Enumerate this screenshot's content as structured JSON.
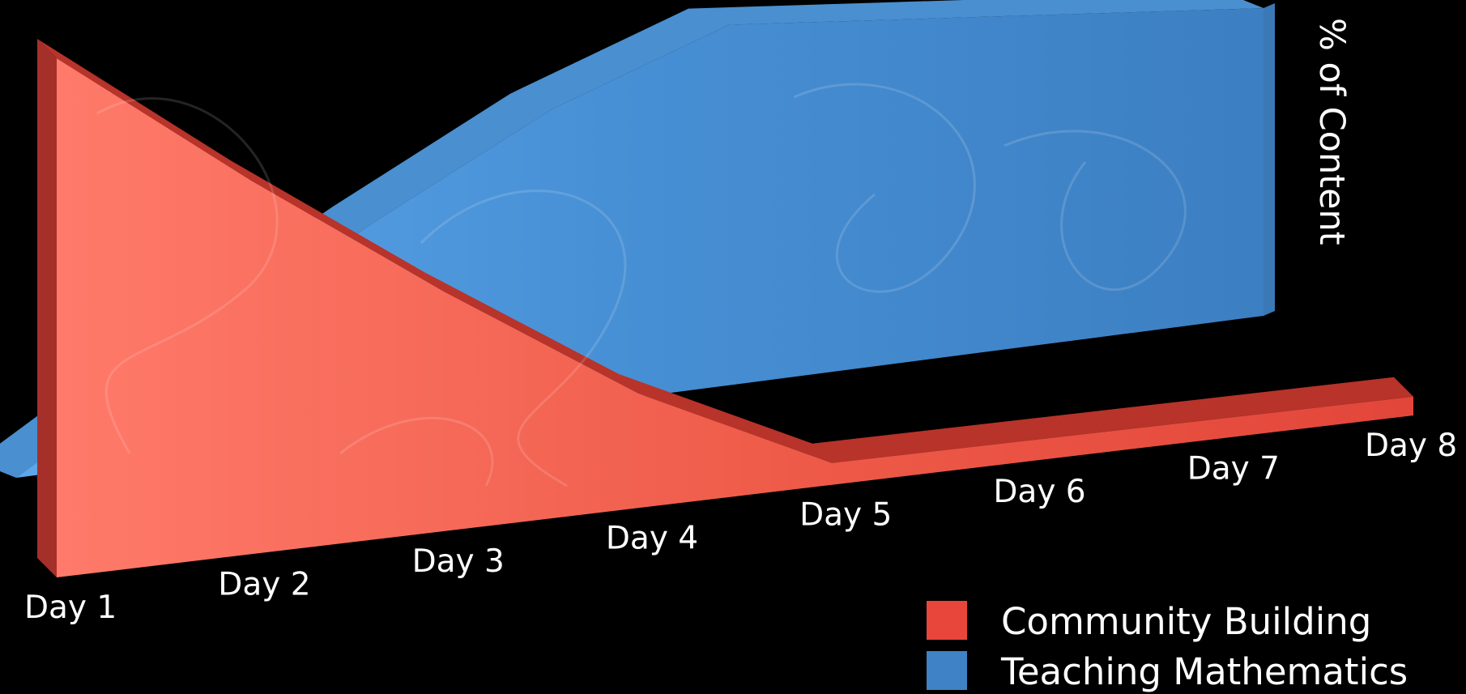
{
  "chart_data": {
    "type": "area",
    "three_d": true,
    "categories": [
      "Day 1",
      "Day 2",
      "Day 3",
      "Day 4",
      "Day 5",
      "Day 6",
      "Day 7",
      "Day 8"
    ],
    "series": [
      {
        "name": "Community Building",
        "values": [
          100,
          75,
          50,
          25,
          5,
          5,
          5,
          5
        ],
        "color": "#e8463a"
      },
      {
        "name": "Teaching Mathematics",
        "values": [
          0,
          25,
          50,
          75,
          95,
          95,
          95,
          95
        ],
        "color": "#3f82c6"
      }
    ],
    "ylabel": "% of Content",
    "ylim": [
      0,
      100
    ],
    "grid": false,
    "legend": "bottom-right",
    "background": "#000000"
  }
}
